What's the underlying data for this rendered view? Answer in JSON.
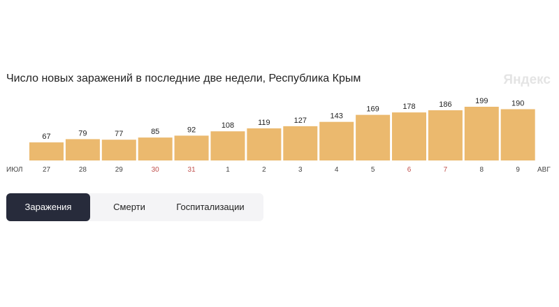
{
  "header": {
    "title": "Число новых заражений в последние две недели, Республика Крым",
    "brand": "Яндекс"
  },
  "tabs": [
    {
      "label": "Заражения",
      "active": true
    },
    {
      "label": "Смерти",
      "active": false
    },
    {
      "label": "Госпитализации",
      "active": false
    }
  ],
  "colors": {
    "bar": "#ebb96e",
    "weekend_label": "#c0504d",
    "axis_label": "#444444",
    "active_tab": "#272b3b"
  },
  "chart_data": {
    "type": "bar",
    "title": "Число новых заражений в последние две недели, Республика Крым",
    "xlabel": "",
    "ylabel": "",
    "axis_start_label": "ИЮЛ",
    "axis_end_label": "АВГ",
    "categories": [
      "27",
      "28",
      "29",
      "30",
      "31",
      "1",
      "2",
      "3",
      "4",
      "5",
      "6",
      "7",
      "8",
      "9"
    ],
    "values": [
      67,
      79,
      77,
      85,
      92,
      108,
      119,
      127,
      143,
      169,
      178,
      186,
      199,
      190
    ],
    "weekend": [
      false,
      false,
      false,
      true,
      true,
      false,
      false,
      false,
      false,
      false,
      true,
      true,
      false,
      false
    ],
    "ylim": [
      0,
      199
    ],
    "grid": false,
    "legend": "none"
  }
}
